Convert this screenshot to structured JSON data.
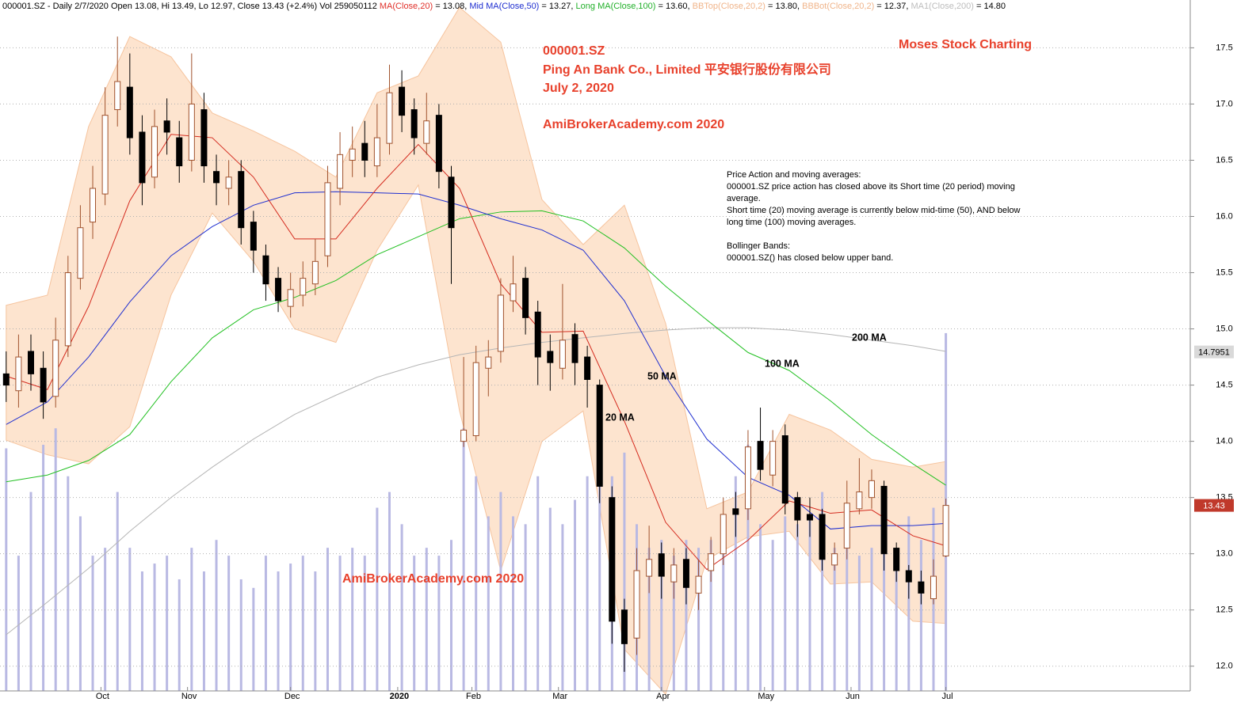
{
  "chart_data": {
    "type": "candlestick",
    "header": [
      {
        "text": "000001.SZ - Daily 2/7/2020 Open 13.08, Hi 13.49, Lo 12.97, Close 13.43 (+2.4%) Vol 259050112 ",
        "color": "#000000"
      },
      {
        "text": "MA(Close,20)",
        "color": "#e0302a"
      },
      {
        "text": " = 13.08, ",
        "color": "#000000"
      },
      {
        "text": "Mid MA(Close,50)",
        "color": "#1f2fd0"
      },
      {
        "text": " = 13.27, ",
        "color": "#000000"
      },
      {
        "text": "Long MA(Close,100)",
        "color": "#22b02a"
      },
      {
        "text": " = 13.60, ",
        "color": "#000000"
      },
      {
        "text": "BBTop(Close,20,2)",
        "color": "#f0b48a"
      },
      {
        "text": " = 13.80, ",
        "color": "#000000"
      },
      {
        "text": "BBBot(Close,20,2)",
        "color": "#f0b48a"
      },
      {
        "text": " = 12.37, ",
        "color": "#000000"
      },
      {
        "text": "MA1(Close,200)",
        "color": "#bdbdbd"
      },
      {
        "text": " = 14.80",
        "color": "#000000"
      }
    ],
    "symbol": "000001.SZ",
    "company": "Ping An Bank Co., Limited 平安银行股份有限公司",
    "date": "July 2, 2020",
    "watermark": "AmiBrokerAcademy.com  2020",
    "brand": "Moses Stock Charting",
    "notes": [
      [
        "Price Action and moving averages:",
        "000001.SZ price action has closed above its Short time (20 period) moving",
        "average.",
        "Short time (20) moving average is currently below mid-time (50), AND below",
        "long time (100) moving averages."
      ],
      [
        "Bollinger Bands:",
        "000001.SZ() has closed below upper band."
      ]
    ],
    "xlim": [
      -1.5,
      287.3
    ],
    "xticks": [
      {
        "value": 23,
        "label": "Oct"
      },
      {
        "value": 44,
        "label": "Nov"
      },
      {
        "value": 69,
        "label": "Dec"
      },
      {
        "value": 95,
        "label": "2020"
      },
      {
        "value": 113,
        "label": "Feb"
      },
      {
        "value": 134,
        "label": "Mar"
      },
      {
        "value": 159,
        "label": "Apr"
      },
      {
        "value": 184,
        "label": "May"
      },
      {
        "value": 205,
        "label": "Jun"
      },
      {
        "value": 228,
        "label": "Jul"
      }
    ],
    "ylim": [
      11.78,
      17.89
    ],
    "yticks": [
      {
        "value": 12,
        "label": "12.0"
      },
      12.5,
      {
        "value": 13,
        "label": "13.0"
      },
      13.5,
      {
        "value": 14,
        "label": "14.0"
      },
      14.5,
      {
        "value": 15,
        "label": "15.0"
      },
      15.5,
      {
        "value": 16,
        "label": "16.0"
      },
      16.5,
      {
        "value": 17,
        "label": "17.0"
      },
      17.5
    ],
    "grid": true,
    "y2lim": [
      0,
      960
    ],
    "x": [
      0,
      3,
      6,
      9,
      12,
      15,
      18,
      21,
      24,
      27,
      30,
      33,
      36,
      39,
      42,
      45,
      48,
      51,
      54,
      57,
      60,
      63,
      66,
      69,
      72,
      75,
      78,
      81,
      84,
      87,
      90,
      93,
      96,
      99,
      102,
      105,
      108,
      111,
      114,
      117,
      120,
      123,
      126,
      129,
      132,
      135,
      138,
      141,
      144,
      147,
      150,
      153,
      156,
      159,
      162,
      165,
      168,
      171,
      174,
      177,
      180,
      183,
      186,
      189,
      192,
      195,
      198,
      201,
      204,
      207,
      210,
      213,
      216,
      219,
      222,
      225,
      228
    ],
    "open": [
      14.6,
      14.45,
      14.8,
      14.65,
      14.4,
      14.85,
      15.45,
      15.95,
      16.2,
      16.95,
      17.15,
      16.75,
      16.35,
      16.85,
      16.7,
      16.5,
      16.95,
      16.4,
      16.25,
      16.4,
      15.95,
      15.65,
      15.45,
      15.2,
      15.3,
      15.4,
      15.65,
      16.25,
      16.5,
      16.65,
      16.45,
      16.65,
      17.15,
      16.95,
      16.65,
      16.9,
      16.35,
      14.0,
      14.05,
      14.65,
      14.8,
      15.25,
      15.45,
      15.15,
      14.8,
      14.65,
      14.95,
      14.75,
      14.5,
      13.5,
      12.5,
      12.25,
      12.8,
      13.0,
      12.75,
      12.95,
      12.65,
      12.85,
      13.0,
      13.4,
      13.4,
      14.0,
      13.7,
      14.05,
      13.5,
      13.35,
      13.35,
      12.9,
      13.05,
      13.4,
      13.5,
      13.6,
      13.05,
      12.85,
      12.75,
      12.6,
      12.98
    ],
    "high": [
      14.8,
      14.95,
      14.95,
      14.8,
      15.1,
      15.65,
      16.1,
      16.45,
      17.15,
      17.6,
      17.45,
      16.9,
      16.95,
      17.05,
      16.85,
      17.45,
      17.1,
      16.55,
      16.5,
      16.5,
      16.05,
      15.75,
      15.55,
      15.5,
      15.6,
      15.8,
      16.45,
      16.75,
      16.8,
      16.85,
      17.0,
      17.35,
      17.3,
      17.05,
      17.1,
      17.0,
      16.45,
      14.75,
      14.85,
      14.9,
      15.45,
      15.65,
      15.55,
      15.25,
      14.95,
      15.4,
      15.05,
      14.85,
      14.55,
      13.6,
      12.6,
      13.05,
      13.25,
      13.1,
      13.05,
      13.05,
      12.95,
      13.15,
      13.5,
      13.55,
      14.1,
      14.3,
      14.1,
      14.15,
      13.55,
      13.5,
      13.4,
      13.1,
      13.65,
      13.85,
      13.75,
      13.65,
      13.1,
      12.9,
      12.85,
      12.95,
      13.49
    ],
    "low": [
      14.35,
      14.3,
      14.45,
      14.2,
      14.3,
      14.75,
      15.35,
      15.8,
      16.1,
      16.8,
      16.55,
      16.1,
      16.25,
      16.55,
      16.3,
      16.4,
      16.3,
      16.1,
      16.1,
      15.75,
      15.5,
      15.25,
      15.15,
      15.1,
      15.2,
      15.3,
      15.55,
      16.1,
      16.35,
      16.35,
      16.35,
      16.55,
      16.75,
      16.55,
      16.55,
      16.25,
      15.4,
      13.95,
      14.0,
      14.4,
      14.7,
      15.15,
      14.95,
      14.5,
      14.45,
      14.55,
      14.5,
      14.3,
      13.45,
      12.2,
      11.95,
      12.1,
      12.65,
      12.6,
      12.6,
      12.55,
      12.5,
      12.75,
      12.9,
      13.15,
      13.3,
      13.65,
      13.6,
      13.35,
      13.15,
      13.15,
      12.85,
      12.85,
      12.95,
      13.35,
      13.4,
      12.85,
      12.75,
      12.6,
      12.55,
      12.55,
      12.97
    ],
    "close": [
      14.5,
      14.75,
      14.6,
      14.35,
      14.9,
      15.5,
      15.9,
      16.25,
      16.9,
      17.2,
      16.7,
      16.3,
      16.8,
      16.75,
      16.45,
      17.0,
      16.45,
      16.3,
      16.35,
      15.9,
      15.7,
      15.4,
      15.25,
      15.35,
      15.45,
      15.6,
      16.3,
      16.55,
      16.6,
      16.5,
      16.7,
      17.1,
      16.9,
      16.7,
      16.85,
      16.4,
      15.9,
      14.1,
      14.7,
      14.75,
      15.3,
      15.4,
      15.1,
      14.75,
      14.7,
      14.9,
      14.7,
      14.55,
      13.6,
      12.4,
      12.2,
      12.85,
      12.95,
      12.8,
      12.9,
      12.7,
      12.8,
      13.0,
      13.35,
      13.35,
      13.95,
      13.75,
      14.0,
      13.45,
      13.3,
      13.3,
      12.95,
      13.0,
      13.45,
      13.55,
      13.65,
      13.0,
      12.85,
      12.75,
      12.65,
      12.8,
      13.43
    ],
    "volume": [
      339,
      189,
      278,
      344,
      367,
      300,
      244,
      189,
      200,
      278,
      200,
      167,
      178,
      189,
      156,
      200,
      167,
      211,
      189,
      156,
      144,
      189,
      167,
      178,
      189,
      167,
      200,
      189,
      200,
      189,
      256,
      278,
      233,
      189,
      200,
      189,
      211,
      367,
      300,
      244,
      278,
      244,
      233,
      300,
      256,
      233,
      267,
      300,
      344,
      300,
      333,
      233,
      200,
      211,
      189,
      211,
      200,
      211,
      244,
      300,
      344,
      233,
      211,
      244,
      233,
      244,
      278,
      200,
      233,
      189,
      200,
      278,
      200,
      244,
      211,
      256,
      500
    ],
    "up_color": "#a0522d",
    "down_color": "#000000",
    "volume_color": "#b9b9e3",
    "line_x": [
      0,
      10,
      20,
      30,
      40,
      50,
      60,
      70,
      80,
      90,
      100,
      110,
      120,
      130,
      140,
      150,
      160,
      170,
      180,
      190,
      200,
      210,
      220,
      228
    ],
    "lines": [
      {
        "name": "200 MA",
        "color": "#b5b5b5",
        "values": [
          12.28,
          12.57,
          12.87,
          13.2,
          13.5,
          13.77,
          14.02,
          14.24,
          14.41,
          14.57,
          14.68,
          14.77,
          14.83,
          14.88,
          14.92,
          14.96,
          14.99,
          15.01,
          15.01,
          14.99,
          14.95,
          14.9,
          14.85,
          14.8
        ]
      },
      {
        "name": "100 MA",
        "color": "#22c022",
        "values": [
          13.64,
          13.7,
          13.83,
          14.06,
          14.53,
          14.92,
          15.17,
          15.28,
          15.43,
          15.66,
          15.82,
          15.98,
          16.04,
          16.05,
          15.96,
          15.72,
          15.38,
          15.08,
          14.79,
          14.63,
          14.36,
          14.06,
          13.8,
          13.61
        ]
      },
      {
        "name": "50 MA",
        "color": "#1f2fd0",
        "values": [
          14.15,
          14.35,
          14.75,
          15.24,
          15.65,
          15.91,
          16.1,
          16.21,
          16.22,
          16.21,
          16.2,
          16.1,
          15.98,
          15.88,
          15.7,
          15.25,
          14.58,
          14.02,
          13.68,
          13.52,
          13.22,
          13.25,
          13.25,
          13.27
        ]
      },
      {
        "name": "20 MA",
        "color": "#d42a1e",
        "values": [
          14.58,
          14.46,
          15.2,
          16.14,
          16.73,
          16.7,
          16.35,
          15.8,
          15.8,
          16.25,
          16.64,
          16.25,
          15.4,
          14.97,
          14.98,
          14.18,
          13.28,
          12.86,
          13.12,
          13.47,
          13.36,
          13.39,
          13.16,
          13.07
        ]
      }
    ],
    "bands": {
      "fill": "#fde4cf",
      "color": "#f6c49e",
      "upper": [
        15.21,
        15.3,
        16.8,
        17.6,
        17.42,
        16.92,
        16.76,
        16.58,
        16.35,
        17.1,
        17.25,
        17.86,
        17.55,
        16.15,
        15.75,
        16.1,
        15.05,
        13.4,
        13.55,
        14.24,
        14.1,
        13.84,
        13.77,
        13.82
      ],
      "lower": [
        14.01,
        13.88,
        13.8,
        14.13,
        15.3,
        16.03,
        15.6,
        15.0,
        14.88,
        15.7,
        16.28,
        14.27,
        12.85,
        14.0,
        14.27,
        12.15,
        11.75,
        12.95,
        13.15,
        13.2,
        12.73,
        12.75,
        12.4,
        12.38
      ]
    },
    "price_labels": [
      {
        "value": 14.7951,
        "color": "#d9d9d9",
        "text_color": "#000000"
      },
      {
        "value": 13.43,
        "color": "#c0392b",
        "text_color": "#ffffff"
      }
    ]
  }
}
